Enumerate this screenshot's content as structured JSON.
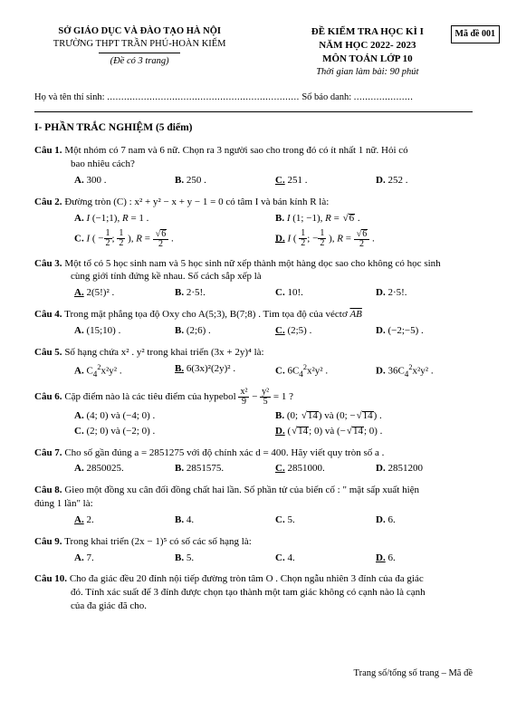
{
  "header": {
    "left": {
      "dept": "SỞ GIÁO DỤC VÀ ĐÀO TẠO HÀ NỘI",
      "school": "TRƯỜNG THPT TRẦN PHÚ-HOÀN KIẾM",
      "pages": "(Đề có 3 trang)"
    },
    "right": {
      "title1": "ĐỀ KIỂM TRA  HỌC KÌ  I",
      "title2": "NĂM HỌC 2022- 2023",
      "title3": "MÔN TOÁN  LỚP 10",
      "duration": "Thời gian làm bài: 90 phút",
      "code_label": "Mã đề 001"
    }
  },
  "info": {
    "name_label": "Họ và tên thí sinh: ",
    "sbd_label": " Số báo danh: "
  },
  "section": "I- PHẦN TRẮC NGHIỆM (5 điểm)",
  "q1": {
    "label": "Câu 1.",
    "stem1": "Một nhóm có 7  nam và 6  nữ. Chọn ra 3  người sao cho trong đó có ít nhất  1  nữ. Hỏi có",
    "stem2": "bao nhiêu cách?",
    "A": "300 .",
    "B": "250 .",
    "C": "251 .",
    "D": "252 ."
  },
  "q2": {
    "label": "Câu 2.",
    "stem": "Đường tròn (C) : x² + y² − x + y − 1 = 0 có tâm  I  và bán kính  R  là:"
  },
  "q3": {
    "label": "Câu 3.",
    "stem1": "Một tổ có 5  học sinh nam và 5  học sinh nữ xếp thành một hàng dọc sao cho không có học sinh",
    "stem2": "cùng giới tính đứng kề nhau. Số cách sắp xếp là",
    "A": "2(5!)² .",
    "B": "2·5!.",
    "C": "10!.",
    "D": "2·5!."
  },
  "q4": {
    "label": "Câu 4.",
    "stem": "Trong mặt phẳng tọa độ Oxy cho A(5;3),  B(7;8) . Tìm tọa độ của véctơ ",
    "A": "(15;10) .",
    "B": "(2;6) .",
    "C": "(2;5) .",
    "D": "(−2;−5) ."
  },
  "q5": {
    "label": "Câu 5.",
    "stem": "Số hạng chứa  x² . y²  trong khai triển  (3x + 2y)⁴ là:"
  },
  "q6": {
    "label": "Câu 6.",
    "stem_pre": "Cặp điểm nào là các tiêu điểm của hypebol  ",
    "stem_post": " = 1 ?",
    "A": "(4; 0) và (−4; 0) .",
    "C": "(2; 0) và (−2; 0) ."
  },
  "q7": {
    "label": "Câu 7.",
    "stem": "Cho số gần đúng a  =  2851275 với độ chính xác d  = 400. Hãy viết quy tròn số a .",
    "A": "2850025.",
    "B": "2851575.",
    "C": "2851000.",
    "D": "2851200"
  },
  "q8": {
    "label": "Câu 8.",
    "stem1": "Gieo một đồng xu cân đối đồng chất hai lần. Số phần tử của biến cố : \" mặt sấp xuất hiện",
    "stem2": "đúng 1 lần\" là:",
    "A": "2.",
    "B": "4.",
    "C": "5.",
    "D": "6."
  },
  "q9": {
    "label": "Câu 9.",
    "stem": "Trong khai triển  (2x − 1)⁵ có số các số hạng là:",
    "A": "7.",
    "B": "5.",
    "C": "4.",
    "D": "6."
  },
  "q10": {
    "label": "Câu 10.",
    "stem1": "Cho đa giác đều 20 đỉnh nội tiếp đường tròn tâm O . Chọn ngẫu nhiên  3  đỉnh của đa giác",
    "stem2": "đó. Tính xác suất để  3  đỉnh được chọn tạo thành một tam giác không có cạnh nào là cạnh",
    "stem3": "của đa giác đã cho."
  },
  "footer": "Trang số/tổng số trang – Mã đề"
}
